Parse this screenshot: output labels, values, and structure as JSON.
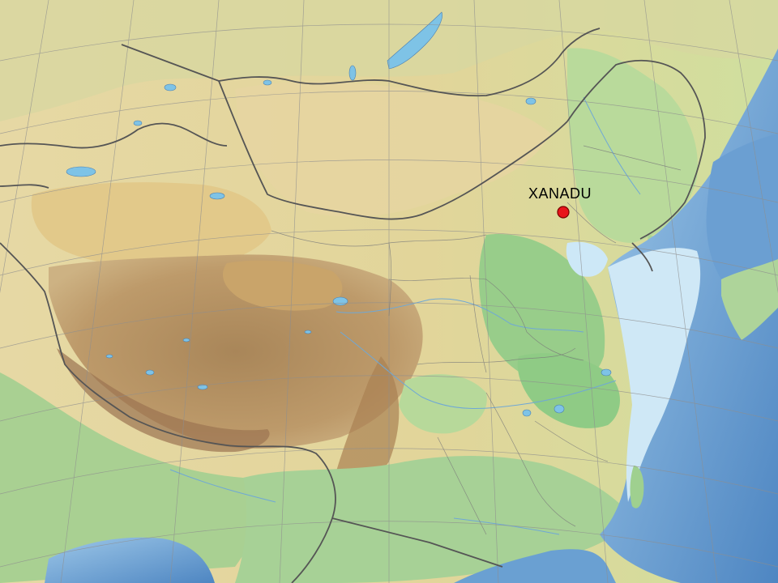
{
  "map": {
    "marker": {
      "label": "XANADU",
      "color": "#e8151b",
      "outline": "#7a0000"
    },
    "colors": {
      "ocean_deep": "#5a92c9",
      "ocean_shallow": "#cde8f7",
      "lowland_green": "#9fd08f",
      "plain_yellow": "#e8dca4",
      "desert_tan": "#ddc98a",
      "plateau_brown": "#b89463",
      "highland_dark": "#9b7451",
      "lake_blue": "#7ec3e6",
      "border_gray": "#555555",
      "graticule_gray": "#999999"
    }
  }
}
